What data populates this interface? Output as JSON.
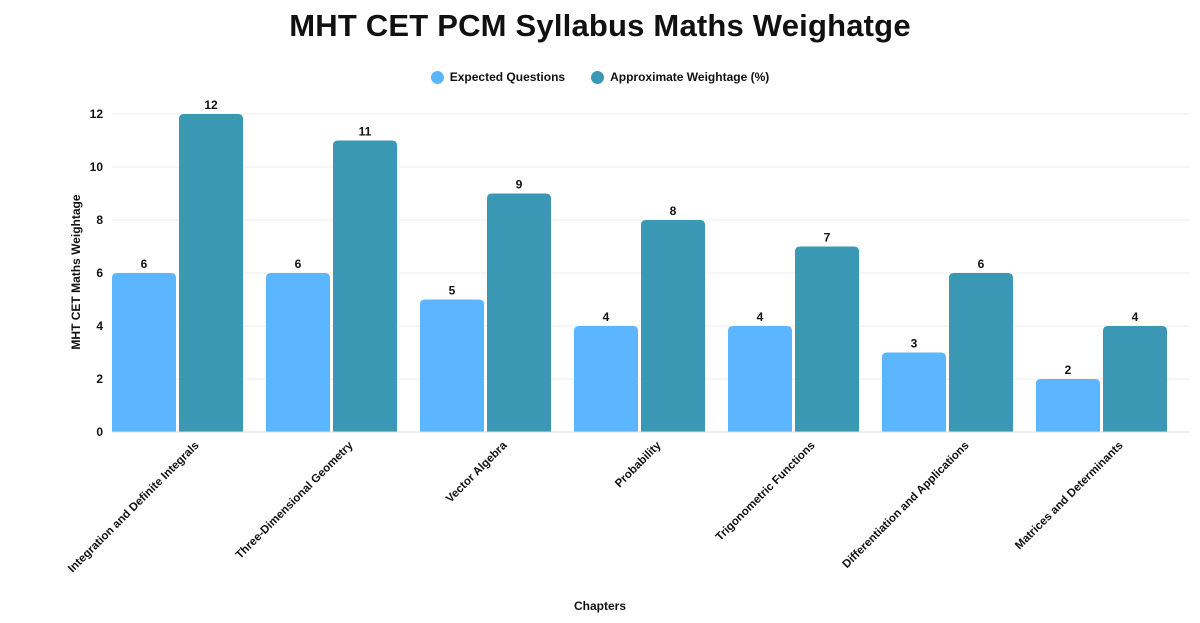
{
  "chart_data": {
    "type": "bar",
    "title": "MHT CET PCM Syllabus Maths Weighatge",
    "xlabel": "Chapters",
    "ylabel": "MHT CET Maths Weightage",
    "ylim": [
      0,
      12
    ],
    "yticks": [
      0,
      2,
      4,
      6,
      8,
      10,
      12
    ],
    "grid": true,
    "legend_position": "top-center",
    "categories": [
      "Integration and Definite Integrals",
      "Three-Dimensional Geometry",
      "Vector Algebra",
      "Probability",
      "Trigonometric Functions",
      "Differentiation and Applications",
      "Matrices and Determinants"
    ],
    "series": [
      {
        "name": "Expected Questions",
        "color": "#5bb5ff",
        "values": [
          6,
          6,
          5,
          4,
          4,
          3,
          2
        ]
      },
      {
        "name": "Approximate Weightage (%)",
        "color": "#3a98b4",
        "values": [
          12,
          11,
          9,
          8,
          7,
          6,
          4
        ]
      }
    ]
  }
}
